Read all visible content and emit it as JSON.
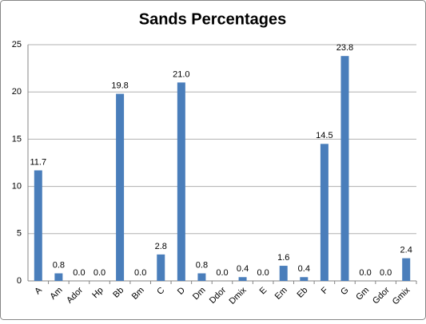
{
  "chart_data": {
    "type": "bar",
    "title": "Sands Percentages",
    "categories": [
      "A",
      "Am",
      "Ador",
      "Hp",
      "Bb",
      "Bm",
      "C",
      "D",
      "Dm",
      "Ddor",
      "Dmix",
      "E",
      "Em",
      "Eb",
      "F",
      "G",
      "Gm",
      "Gdor",
      "Gmix"
    ],
    "values": [
      11.7,
      0.8,
      0.0,
      0.0,
      19.8,
      0.0,
      2.8,
      21.0,
      0.8,
      0.0,
      0.4,
      0.0,
      1.6,
      0.4,
      14.5,
      23.8,
      0.0,
      0.0,
      2.4
    ],
    "value_labels": [
      "11.7",
      "0.8",
      "0.0",
      "0.0",
      "19.8",
      "0.0",
      "2.8",
      "21.0",
      "0.8",
      "0.0",
      "0.4",
      "0.0",
      "1.6",
      "0.4",
      "14.5",
      "23.8",
      "0.0",
      "0.0",
      "2.4"
    ],
    "color": "#4a7ebb",
    "ylim": [
      0,
      25
    ],
    "yticks": [
      0,
      5,
      10,
      15,
      20,
      25
    ],
    "grid": true
  }
}
